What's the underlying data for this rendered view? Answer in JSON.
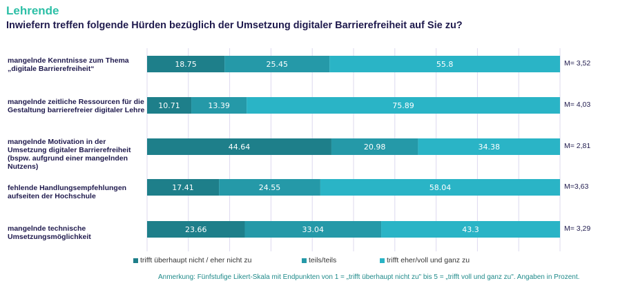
{
  "header": {
    "section_title": "Lehrende",
    "question": "Inwiefern treffen folgende Hürden bezüglich der Umsetzung digitaler Barrierefreiheit auf Sie zu?"
  },
  "colors": {
    "disagree": "#1e7f8a",
    "neutral": "#2599a8",
    "agree": "#2ab4c6",
    "grid": "#dcd8ee",
    "title": "#2cbfa6",
    "text": "#1f1a4d",
    "note": "#1f8a8a"
  },
  "chart_data": {
    "type": "bar",
    "orientation": "horizontal",
    "stacked": true,
    "title": "Inwiefern treffen folgende Hürden bezüglich der Umsetzung digitaler Barrierefreiheit auf Sie zu?",
    "xlabel": "",
    "ylabel": "",
    "xlim": [
      0,
      100
    ],
    "grid": true,
    "grid_step": 10,
    "legend_position": "bottom",
    "categories": [
      [
        "mangelnde Kenntnisse zum Thema",
        "„digitale Barrierefreiheit“"
      ],
      [
        "mangelnde zeitliche Ressourcen für die",
        "Gestaltung barrierefreier digitaler Lehre"
      ],
      [
        "mangelnde Motivation in der",
        "Umsetzung digitaler Barrierefreiheit",
        "(bspw. aufgrund einer mangelnden",
        "Nutzens)"
      ],
      [
        "fehlende Handlungsempfehlungen",
        "aufseiten der Hochschule"
      ],
      [
        "mangelnde technische",
        "Umsetzungsmöglichkeit"
      ]
    ],
    "series": [
      {
        "name": "trifft überhaupt nicht / eher nicht zu",
        "values": [
          18.75,
          10.71,
          44.64,
          17.41,
          23.66
        ]
      },
      {
        "name": "teils/teils",
        "values": [
          25.45,
          13.39,
          20.98,
          24.55,
          33.04
        ]
      },
      {
        "name": "trifft eher/voll und ganz zu",
        "values": [
          55.8,
          75.89,
          34.38,
          58.04,
          43.3
        ]
      }
    ],
    "data_labels": [
      [
        "18.75",
        "25.45",
        "55.8"
      ],
      [
        "10.71",
        "13.39",
        "75.89"
      ],
      [
        "44.64",
        "20.98",
        "34.38"
      ],
      [
        "17.41",
        "24.55",
        "58.04"
      ],
      [
        "23.66",
        "33.04",
        "43.3"
      ]
    ],
    "annotations": [
      "M= 3,52",
      "M= 4,03",
      "M= 2,81",
      "M=3,63",
      "M= 3,29"
    ],
    "note": "Anmerkung: Fünfstufige Likert-Skala mit Endpunkten von 1 = „trifft überhaupt nicht zu\" bis 5 = „trifft voll und ganz zu\". Angaben in Prozent."
  }
}
